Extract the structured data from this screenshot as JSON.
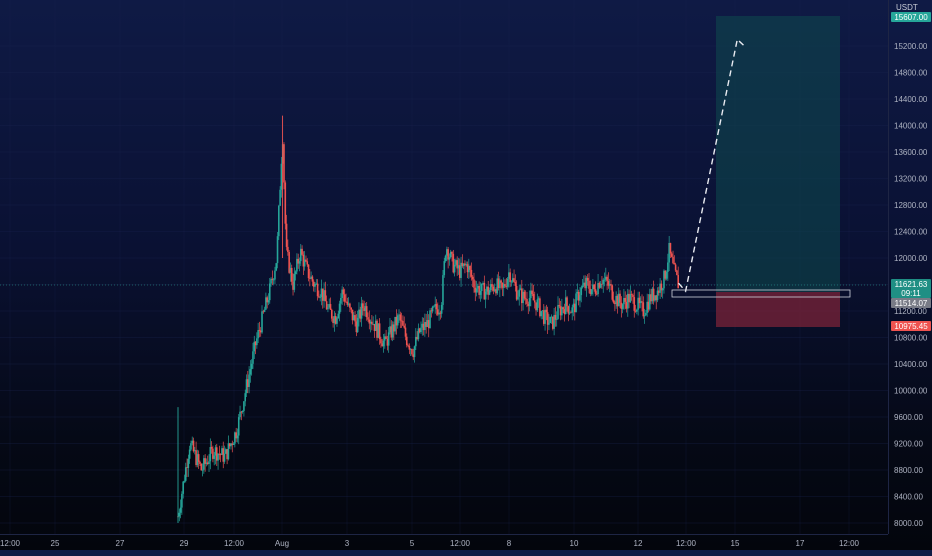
{
  "currency": "USDT",
  "price_axis": {
    "ticks": [
      "15200.00",
      "14800.00",
      "14400.00",
      "14000.00",
      "13600.00",
      "13200.00",
      "12800.00",
      "12400.00",
      "12000.00",
      "11600.00",
      "11200.00",
      "10800.00",
      "10400.00",
      "10000.00",
      "9600.00",
      "9200.00",
      "8800.00",
      "8400.00",
      "8000.00"
    ],
    "tick_values": [
      15200,
      14800,
      14400,
      14000,
      13600,
      13200,
      12800,
      12400,
      12000,
      11600,
      11200,
      10800,
      10400,
      10000,
      9600,
      9200,
      8800,
      8400,
      8000
    ]
  },
  "time_axis": {
    "labels": [
      "12:00",
      "25",
      "27",
      "29",
      "12:00",
      "Aug",
      "3",
      "5",
      "12:00",
      "8",
      "10",
      "12",
      "12:00",
      "15",
      "17",
      "12:00"
    ]
  },
  "badges": {
    "target_price": "15607.00",
    "current_price": "11621.63",
    "countdown": "09:11",
    "entry_price": "11514.07",
    "stop_price": "10975.45"
  },
  "colors": {
    "target": "#26a69a",
    "stop": "#ef5350",
    "entry": "#787b86",
    "up_candle": "#26a69a",
    "down_candle": "#ef5350"
  },
  "chart_data": {
    "type": "candlestick",
    "ylim": [
      7950,
      15800
    ],
    "position": {
      "entry": 11514.07,
      "target": 15607.0,
      "stop": 10975.45
    },
    "close_path": [
      [
        0.0,
        8100
      ],
      [
        0.5,
        9200
      ],
      [
        1.0,
        8800
      ],
      [
        1.5,
        9100
      ],
      [
        2.0,
        9000
      ],
      [
        2.5,
        9400
      ],
      [
        3.0,
        10200
      ],
      [
        3.3,
        10700
      ],
      [
        3.6,
        11100
      ],
      [
        3.9,
        11500
      ],
      [
        4.2,
        12000
      ],
      [
        4.45,
        13900
      ],
      [
        4.6,
        12100
      ],
      [
        4.9,
        11600
      ],
      [
        5.2,
        12100
      ],
      [
        5.5,
        11800
      ],
      [
        5.8,
        11600
      ],
      [
        6.1,
        11500
      ],
      [
        6.4,
        11200
      ],
      [
        6.7,
        11100
      ],
      [
        7.0,
        11500
      ],
      [
        7.3,
        11200
      ],
      [
        7.6,
        11000
      ],
      [
        7.9,
        11300
      ],
      [
        8.2,
        11100
      ],
      [
        8.5,
        10900
      ],
      [
        8.8,
        10700
      ],
      [
        9.1,
        10900
      ],
      [
        9.4,
        11100
      ],
      [
        9.7,
        10800
      ],
      [
        10.0,
        10600
      ],
      [
        10.3,
        10900
      ],
      [
        10.6,
        11000
      ],
      [
        10.9,
        11200
      ],
      [
        11.2,
        11300
      ],
      [
        11.4,
        12200
      ],
      [
        11.7,
        11900
      ],
      [
        12.0,
        11800
      ],
      [
        12.3,
        11900
      ],
      [
        12.6,
        11600
      ],
      [
        12.9,
        11500
      ],
      [
        13.2,
        11500
      ],
      [
        13.5,
        11600
      ],
      [
        13.8,
        11500
      ],
      [
        14.1,
        11800
      ],
      [
        14.4,
        11500
      ],
      [
        14.7,
        11400
      ],
      [
        15.0,
        11400
      ],
      [
        15.3,
        11300
      ],
      [
        15.6,
        11100
      ],
      [
        15.9,
        11000
      ],
      [
        16.2,
        11200
      ],
      [
        16.5,
        11300
      ],
      [
        16.8,
        11200
      ],
      [
        17.1,
        11500
      ],
      [
        17.4,
        11600
      ],
      [
        17.7,
        11500
      ],
      [
        18.0,
        11700
      ],
      [
        18.3,
        11600
      ],
      [
        18.6,
        11400
      ],
      [
        18.9,
        11300
      ],
      [
        19.2,
        11400
      ],
      [
        19.5,
        11300
      ],
      [
        19.8,
        11200
      ],
      [
        20.1,
        11400
      ],
      [
        20.4,
        11500
      ],
      [
        20.7,
        11700
      ],
      [
        20.9,
        12100
      ],
      [
        21.1,
        11800
      ],
      [
        21.3,
        11600
      ]
    ],
    "projection": [
      [
        21.3,
        11620
      ],
      [
        21.6,
        11500
      ],
      [
        23.8,
        15300
      ],
      [
        24.1,
        15200
      ]
    ]
  }
}
